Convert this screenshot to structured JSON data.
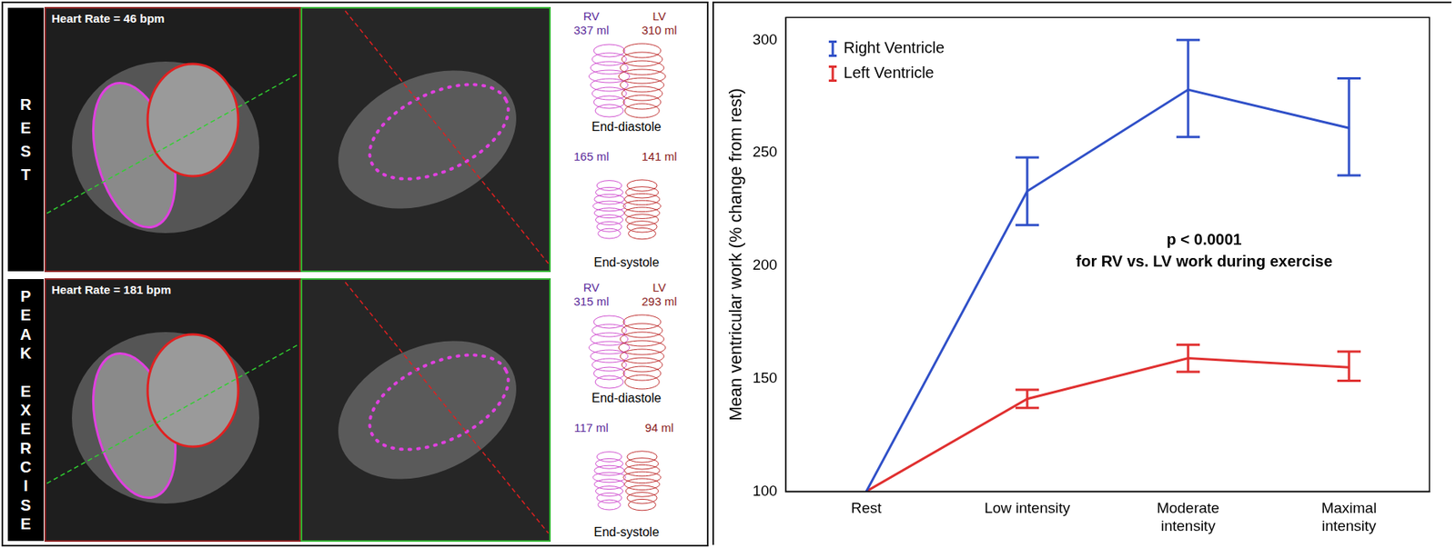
{
  "chart_data": {
    "type": "line",
    "categories": [
      "Rest",
      "Low intensity",
      "Moderate intensity",
      "Maximal intensity"
    ],
    "y_label": "Mean ventricular work (% change from rest)",
    "ylim": [
      100,
      310
    ],
    "yticks": [
      100,
      150,
      200,
      250,
      300
    ],
    "grid": false,
    "legend": "upper left",
    "annotations": [
      "p < 0.0001",
      "for RV vs. LV work during exercise"
    ],
    "series": [
      {
        "name": "Right Ventricle",
        "color": "#3050c8",
        "values": [
          100,
          233,
          278,
          261
        ],
        "error_low": [
          null,
          218,
          257,
          240
        ],
        "error_high": [
          null,
          248,
          300,
          283
        ]
      },
      {
        "name": "Left Ventricle",
        "color": "#e03030",
        "values": [
          100,
          141,
          159,
          155
        ],
        "error_low": [
          null,
          137,
          153,
          149
        ],
        "error_high": [
          null,
          145,
          165,
          162
        ]
      }
    ]
  },
  "image_panel": {
    "rv_label": "RV",
    "lv_label": "LV",
    "diastole_label": "End-diastole",
    "systole_label": "End-systole",
    "rows": [
      {
        "label": "REST",
        "heart_rate": "Heart Rate = 46 bpm",
        "end_diastole": {
          "rv": "337 ml",
          "lv": "310 ml"
        },
        "end_systole": {
          "rv": "165 ml",
          "lv": "141 ml"
        }
      },
      {
        "label": "PEAK EXERCISE",
        "heart_rate": "Heart Rate = 181 bpm",
        "end_diastole": {
          "rv": "315 ml",
          "lv": "293 ml"
        },
        "end_systole": {
          "rv": "117 ml",
          "lv": "94 ml"
        }
      }
    ]
  }
}
